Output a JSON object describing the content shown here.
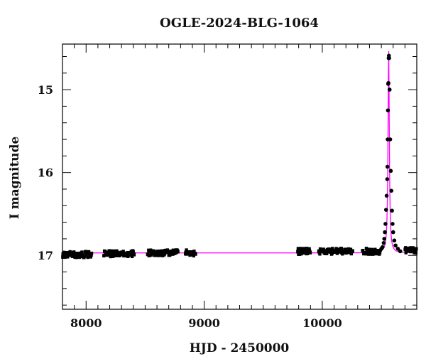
{
  "chart_data": {
    "type": "scatter",
    "title": "OGLE-2024-BLG-1064",
    "xlabel": "HJD - 2450000",
    "ylabel": "I magnitude",
    "xlim": [
      7800,
      10800
    ],
    "ylim": [
      17.65,
      14.45
    ],
    "y_inverted": true,
    "grid": false,
    "x_major_ticks": [
      8000,
      9000,
      10000
    ],
    "x_tick_labels": [
      "8000",
      "9000",
      "10000"
    ],
    "y_major_ticks": [
      15,
      16,
      17
    ],
    "y_tick_labels": [
      "15",
      "16",
      "17"
    ],
    "colors": {
      "points": "#000000",
      "model": "#ff00ff",
      "frame": "#000000"
    },
    "observing_seasons": [
      {
        "start": 7800,
        "end": 8050,
        "mean_mag": 16.99
      },
      {
        "start": 8150,
        "end": 8410,
        "mean_mag": 16.98
      },
      {
        "start": 8520,
        "end": 8780,
        "mean_mag": 16.97
      },
      {
        "start": 8840,
        "end": 8930,
        "mean_mag": 16.97
      },
      {
        "start": 9790,
        "end": 9900,
        "mean_mag": 16.95
      },
      {
        "start": 9970,
        "end": 10260,
        "mean_mag": 16.95
      },
      {
        "start": 10340,
        "end": 10490,
        "mean_mag": 16.95
      },
      {
        "start": 10700,
        "end": 10800,
        "mean_mag": 16.94
      }
    ],
    "peak_points": [
      {
        "x": 10490,
        "y": 16.94
      },
      {
        "x": 10500,
        "y": 16.92
      },
      {
        "x": 10510,
        "y": 16.9
      },
      {
        "x": 10520,
        "y": 16.85
      },
      {
        "x": 10525,
        "y": 16.8
      },
      {
        "x": 10530,
        "y": 16.72
      },
      {
        "x": 10535,
        "y": 16.62
      },
      {
        "x": 10540,
        "y": 16.45
      },
      {
        "x": 10545,
        "y": 16.28
      },
      {
        "x": 10550,
        "y": 16.08
      },
      {
        "x": 10552,
        "y": 15.93
      },
      {
        "x": 10554,
        "y": 15.6
      },
      {
        "x": 10556,
        "y": 15.25
      },
      {
        "x": 10558,
        "y": 14.93
      },
      {
        "x": 10560,
        "y": 14.92
      },
      {
        "x": 10562,
        "y": 14.62
      },
      {
        "x": 10564,
        "y": 14.59
      },
      {
        "x": 10566,
        "y": 14.62
      },
      {
        "x": 10570,
        "y": 15.0
      },
      {
        "x": 10575,
        "y": 15.6
      },
      {
        "x": 10580,
        "y": 15.98
      },
      {
        "x": 10585,
        "y": 16.22
      },
      {
        "x": 10590,
        "y": 16.46
      },
      {
        "x": 10595,
        "y": 16.62
      },
      {
        "x": 10600,
        "y": 16.72
      },
      {
        "x": 10610,
        "y": 16.82
      },
      {
        "x": 10620,
        "y": 16.88
      },
      {
        "x": 10640,
        "y": 16.92
      },
      {
        "x": 10660,
        "y": 16.95
      }
    ],
    "model": {
      "baseline_mag": 16.97,
      "peak_time": 10562,
      "peak_mag": 14.52,
      "half_width_days": 6.5
    }
  }
}
